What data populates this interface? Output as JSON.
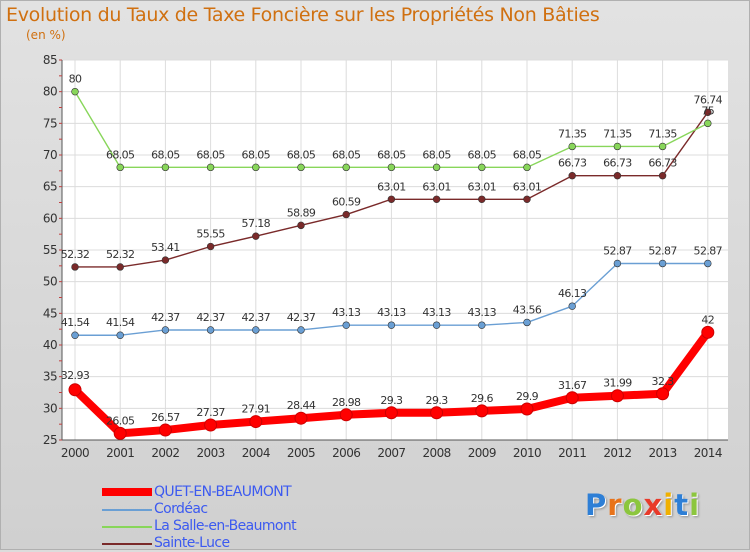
{
  "header": {
    "title": "Evolution du Taux de Taxe Foncière sur les Propriétés Non Bâties",
    "unit": "(en %)"
  },
  "brand": {
    "letters": [
      "P",
      "r",
      "o",
      "x",
      "i",
      "t",
      "i"
    ],
    "colors": [
      "#2e7fd6",
      "#e8731a",
      "#8cc63e",
      "#e83a2a",
      "#f0b000",
      "#2e7fd6",
      "#8cc63e"
    ]
  },
  "chart_data": {
    "type": "line",
    "title": "Evolution du Taux de Taxe Foncière sur les Propriétés Non Bâties",
    "ylabel": "(en %)",
    "xlabel": "",
    "ylim": [
      25,
      85
    ],
    "yticks": [
      25,
      30,
      35,
      40,
      45,
      50,
      55,
      60,
      65,
      70,
      75,
      80,
      85
    ],
    "grid": true,
    "legend_position": "bottom-left",
    "categories": [
      "2000",
      "2001",
      "2002",
      "2003",
      "2004",
      "2005",
      "2006",
      "2007",
      "2008",
      "2009",
      "2010",
      "2011",
      "2012",
      "2013",
      "2014"
    ],
    "series": [
      {
        "name": "QUET-EN-BEAUMONT",
        "color": "#ff0000",
        "values": [
          32.93,
          26.05,
          26.57,
          27.37,
          27.91,
          28.44,
          28.98,
          29.3,
          29.3,
          29.6,
          29.9,
          31.67,
          31.99,
          32.3,
          42
        ],
        "labels": [
          "32.93",
          "26.05",
          "26.57",
          "27.37",
          "27.91",
          "28.44",
          "28.98",
          "29.3",
          "29.3",
          "29.6",
          "29.9",
          "31.67",
          "31.99",
          "32.3",
          "42"
        ]
      },
      {
        "name": "Cordéac",
        "color": "#6a9fd4",
        "values": [
          41.54,
          41.54,
          42.37,
          42.37,
          42.37,
          42.37,
          43.13,
          43.13,
          43.13,
          43.13,
          43.56,
          46.13,
          52.87,
          52.87,
          52.87
        ],
        "labels": [
          "41.54",
          "41.54",
          "42.37",
          "42.37",
          "42.37",
          "42.37",
          "43.13",
          "43.13",
          "43.13",
          "43.13",
          "43.56",
          "46.13",
          "52.87",
          "52.87",
          "52.87"
        ]
      },
      {
        "name": "La Salle-en-Beaumont",
        "color": "#88d65a",
        "values": [
          80,
          68.05,
          68.05,
          68.05,
          68.05,
          68.05,
          68.05,
          68.05,
          68.05,
          68.05,
          68.05,
          71.35,
          71.35,
          71.35,
          75
        ],
        "labels": [
          "80",
          "68.05",
          "68.05",
          "68.05",
          "68.05",
          "68.05",
          "68.05",
          "68.05",
          "68.05",
          "68.05",
          "68.05",
          "71.35",
          "71.35",
          "71.35",
          "75"
        ]
      },
      {
        "name": "Sainte-Luce",
        "color": "#7a2a2a",
        "values": [
          52.32,
          52.32,
          53.41,
          55.55,
          57.18,
          58.89,
          60.59,
          63.01,
          63.01,
          63.01,
          63.01,
          66.73,
          66.73,
          66.73,
          76.74
        ],
        "labels": [
          "52.32",
          "52.32",
          "53.41",
          "55.55",
          "57.18",
          "58.89",
          "60.59",
          "63.01",
          "63.01",
          "63.01",
          "63.01",
          "66.73",
          "66.73",
          "66.73",
          "76.74"
        ]
      }
    ]
  }
}
